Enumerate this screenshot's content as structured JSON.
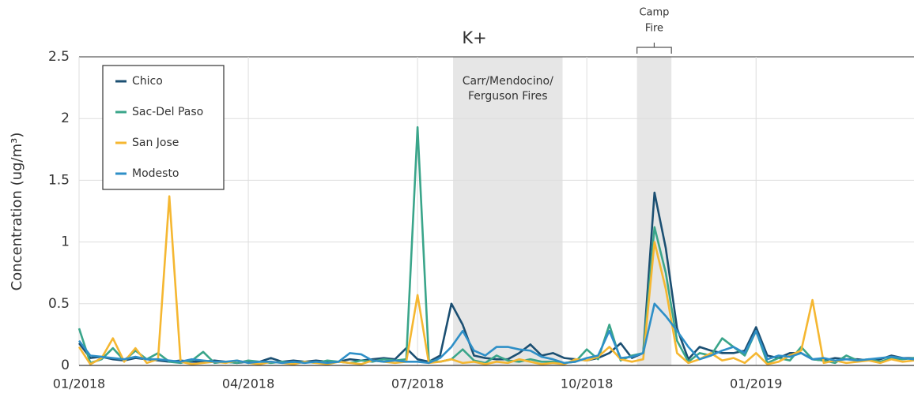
{
  "chart_data": {
    "type": "line",
    "title": "K+",
    "ylabel": "Concentration (ug/m³)",
    "xlim": [
      0,
      14.8
    ],
    "xticks": [
      {
        "value": 0,
        "label": "01/2018"
      },
      {
        "value": 3,
        "label": "04/2018"
      },
      {
        "value": 6,
        "label": "07/2018"
      },
      {
        "value": 9,
        "label": "10/2018"
      },
      {
        "value": 12,
        "label": "01/2019"
      }
    ],
    "ylim": [
      0,
      2.5
    ],
    "yticks": [
      0,
      0.5,
      1,
      1.5,
      2,
      2.5
    ],
    "grid": true,
    "legend": "upper left",
    "regions": [
      {
        "label": [
          "Carr/Mendocino/",
          "Ferguson Fires"
        ],
        "start": 6.63,
        "end": 8.57
      },
      {
        "label": [
          "Camp",
          "Fire"
        ],
        "start": 9.89,
        "end": 10.5
      }
    ],
    "x": [
      0,
      0.2,
      0.4,
      0.6,
      0.8,
      1,
      1.2,
      1.4,
      1.6,
      1.8,
      2,
      2.2,
      2.4,
      2.6,
      2.8,
      3,
      3.2,
      3.4,
      3.6,
      3.8,
      4,
      4.2,
      4.4,
      4.6,
      4.8,
      5,
      5.2,
      5.4,
      5.6,
      5.8,
      6,
      6.2,
      6.4,
      6.6,
      6.8,
      7,
      7.2,
      7.4,
      7.6,
      7.8,
      8,
      8.2,
      8.4,
      8.6,
      8.8,
      9,
      9.2,
      9.4,
      9.6,
      9.8,
      10,
      10.2,
      10.4,
      10.6,
      10.8,
      11,
      11.2,
      11.4,
      11.6,
      11.8,
      12,
      12.2,
      12.4,
      12.6,
      12.8,
      13,
      13.2,
      13.4,
      13.6,
      13.8,
      14,
      14.2,
      14.4,
      14.6,
      14.8
    ],
    "series": [
      {
        "name": "Chico",
        "color": "#1b4f72",
        "values": [
          0.18,
          0.06,
          0.07,
          0.05,
          0.04,
          0.06,
          0.05,
          0.04,
          0.03,
          0.04,
          0.03,
          0.03,
          0.04,
          0.03,
          0.02,
          0.03,
          0.03,
          0.06,
          0.03,
          0.04,
          0.03,
          0.04,
          0.03,
          0.03,
          0.05,
          0.04,
          0.05,
          0.06,
          0.05,
          0.14,
          0.05,
          0.03,
          0.08,
          0.5,
          0.33,
          0.08,
          0.06,
          0.05,
          0.05,
          0.1,
          0.17,
          0.08,
          0.1,
          0.06,
          0.05,
          0.04,
          0.06,
          0.1,
          0.18,
          0.06,
          0.1,
          1.4,
          0.95,
          0.3,
          0.05,
          0.15,
          0.12,
          0.1,
          0.1,
          0.12,
          0.31,
          0.08,
          0.06,
          0.1,
          0.1,
          0.05,
          0.04,
          0.06,
          0.05,
          0.05,
          0.04,
          0.05,
          0.08,
          0.06,
          0.06
        ]
      },
      {
        "name": "Sac-Del Paso",
        "color": "#3aa58a",
        "values": [
          0.3,
          0.02,
          0.05,
          0.14,
          0.04,
          0.12,
          0.05,
          0.1,
          0.03,
          0.02,
          0.04,
          0.11,
          0.02,
          0.03,
          0.02,
          0.04,
          0.03,
          0.02,
          0.03,
          0.02,
          0.03,
          0.02,
          0.04,
          0.03,
          0.02,
          0.04,
          0.03,
          0.05,
          0.04,
          0.05,
          1.93,
          0.04,
          0.03,
          0.05,
          0.13,
          0.04,
          0.02,
          0.08,
          0.04,
          0.03,
          0.05,
          0.03,
          0.03,
          0.02,
          0.03,
          0.13,
          0.05,
          0.33,
          0.04,
          0.08,
          0.1,
          1.12,
          0.75,
          0.2,
          0.03,
          0.1,
          0.08,
          0.22,
          0.15,
          0.08,
          0.28,
          0.02,
          0.06,
          0.04,
          0.15,
          0.05,
          0.04,
          0.02,
          0.08,
          0.04,
          0.05,
          0.03,
          0.06,
          0.05,
          0.06
        ]
      },
      {
        "name": "San Jose",
        "color": "#f5b731",
        "values": [
          0.15,
          0.01,
          0.06,
          0.22,
          0.03,
          0.14,
          0.02,
          0.05,
          1.37,
          0.03,
          0.01,
          0.02,
          0.03,
          0.02,
          0.04,
          0.02,
          0.01,
          0.03,
          0.02,
          0.01,
          0.03,
          0.02,
          0.01,
          0.03,
          0.02,
          0.01,
          0.04,
          0.03,
          0.02,
          0.03,
          0.57,
          0.02,
          0.03,
          0.05,
          0.02,
          0.03,
          0.01,
          0.03,
          0.02,
          0.05,
          0.03,
          0.01,
          0.02,
          0.01,
          0.05,
          0.04,
          0.07,
          0.15,
          0.05,
          0.03,
          0.05,
          1.0,
          0.62,
          0.1,
          0.02,
          0.05,
          0.1,
          0.04,
          0.06,
          0.02,
          0.1,
          0.01,
          0.03,
          0.08,
          0.12,
          0.53,
          0.02,
          0.04,
          0.02,
          0.03,
          0.04,
          0.02,
          0.05,
          0.03,
          0.04
        ]
      },
      {
        "name": "Modesto",
        "color": "#2e8fc7",
        "values": [
          0.2,
          0.08,
          0.07,
          0.06,
          0.05,
          0.07,
          0.05,
          0.05,
          0.04,
          0.03,
          0.05,
          0.04,
          0.03,
          0.03,
          0.04,
          0.02,
          0.03,
          0.03,
          0.02,
          0.03,
          0.02,
          0.03,
          0.02,
          0.03,
          0.1,
          0.09,
          0.04,
          0.03,
          0.04,
          0.03,
          0.03,
          0.02,
          0.06,
          0.15,
          0.28,
          0.12,
          0.08,
          0.15,
          0.15,
          0.13,
          0.12,
          0.07,
          0.05,
          0.02,
          0.03,
          0.06,
          0.08,
          0.28,
          0.06,
          0.07,
          0.1,
          0.5,
          0.4,
          0.28,
          0.15,
          0.05,
          0.08,
          0.12,
          0.15,
          0.1,
          0.28,
          0.05,
          0.08,
          0.07,
          0.1,
          0.05,
          0.06,
          0.04,
          0.05,
          0.04,
          0.05,
          0.06,
          0.07,
          0.06,
          0.05
        ]
      }
    ]
  }
}
